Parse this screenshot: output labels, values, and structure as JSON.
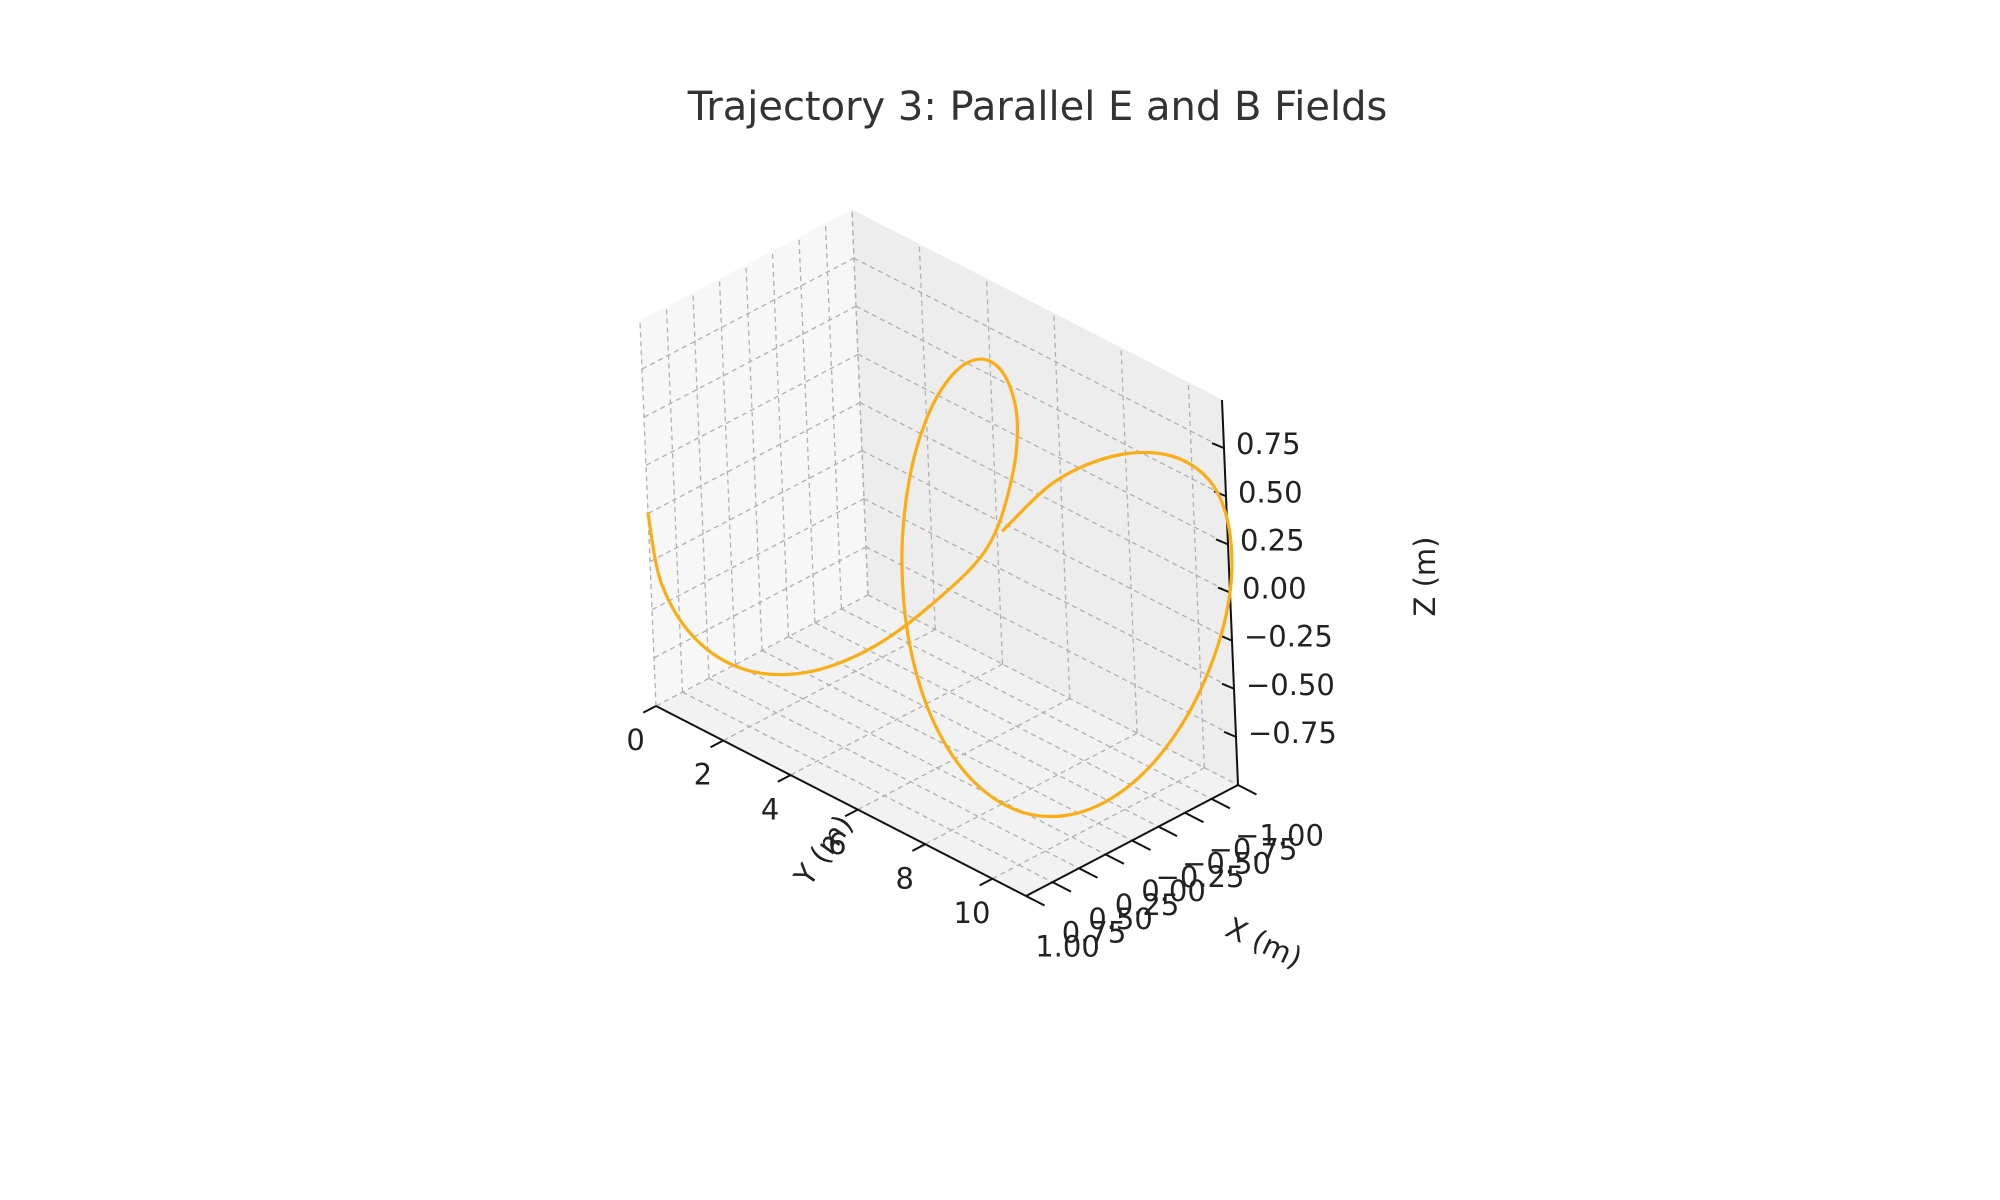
{
  "chart_data": {
    "type": "line",
    "projection": "3d",
    "title": "Trajectory 3: Parallel E and B Fields",
    "xlabel": "X (m)",
    "ylabel": "Y (m)",
    "zlabel": "Z (m)",
    "xlim": [
      -1.0,
      1.0
    ],
    "ylim": [
      0,
      11
    ],
    "zlim": [
      -1.0,
      1.0
    ],
    "xticks": [
      "−1.00",
      "−0.75",
      "−0.50",
      "−0.25",
      "0.00",
      "0.25",
      "0.50",
      "0.75",
      "1.00"
    ],
    "yticks": [
      "0",
      "2",
      "4",
      "6",
      "8",
      "10"
    ],
    "zticks": [
      "−0.75",
      "−0.50",
      "−0.25",
      "0.00",
      "0.25",
      "0.50",
      "0.75"
    ],
    "grid": true,
    "series": [
      {
        "color": "#fbad15",
        "points": [
          [
            1.0,
            0.0,
            0.0
          ],
          [
            0.924,
            0.08,
            -0.383
          ],
          [
            0.707,
            0.32,
            -0.707
          ],
          [
            0.383,
            0.72,
            -0.924
          ],
          [
            0.0,
            1.28,
            -1.0
          ],
          [
            -0.383,
            2.0,
            -0.924
          ],
          [
            -0.707,
            2.88,
            -0.707
          ],
          [
            -0.924,
            3.92,
            -0.383
          ],
          [
            -1.0,
            4.5,
            0.0
          ],
          [
            -0.924,
            5.0,
            0.383
          ],
          [
            -0.707,
            5.4,
            0.707
          ],
          [
            -0.383,
            5.8,
            0.924
          ],
          [
            0.0,
            6.2,
            1.0
          ],
          [
            0.383,
            6.6,
            0.924
          ],
          [
            0.707,
            7.0,
            0.707
          ],
          [
            0.924,
            7.4,
            0.383
          ],
          [
            1.0,
            7.8,
            0.0
          ],
          [
            0.924,
            8.2,
            -0.383
          ],
          [
            0.707,
            8.6,
            -0.707
          ],
          [
            0.383,
            9.0,
            -0.924
          ],
          [
            0.0,
            9.4,
            -1.0
          ],
          [
            -0.383,
            9.8,
            -0.924
          ],
          [
            -0.707,
            10.2,
            -0.707
          ],
          [
            -0.924,
            10.6,
            -0.383
          ],
          [
            -1.0,
            11.0,
            0.0
          ],
          [
            -0.924,
            11.3,
            0.383
          ],
          [
            -0.707,
            11.5,
            0.707
          ],
          [
            -0.383,
            11.4,
            0.924
          ],
          [
            0.0,
            11.0,
            1.0
          ],
          [
            0.383,
            10.4,
            0.924
          ],
          [
            0.707,
            9.8,
            0.707
          ]
        ]
      }
    ]
  }
}
